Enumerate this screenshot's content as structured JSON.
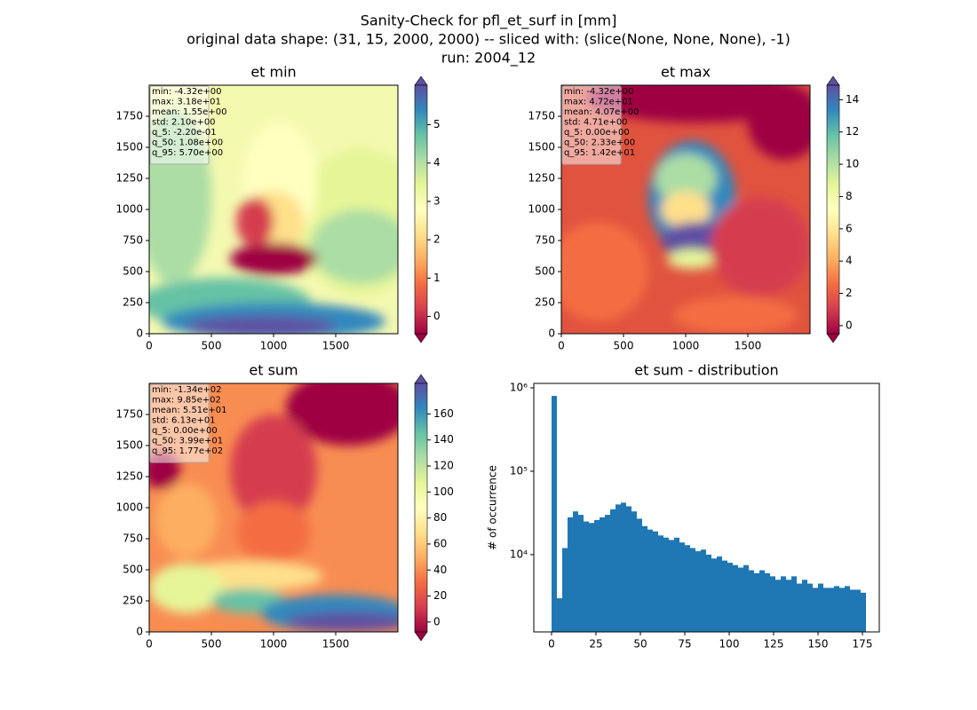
{
  "suptitle": [
    "Sanity-Check for pfl_et_surf in [mm]",
    "original data shape: (31, 15, 2000, 2000) -- sliced with: (slice(None, None, None), -1)",
    "run: 2004_12"
  ],
  "chart_data": [
    {
      "type": "heatmap",
      "title": "et min",
      "xlim": [
        0,
        2000
      ],
      "ylim": [
        0,
        2000
      ],
      "xticks": [
        0,
        500,
        1000,
        1500
      ],
      "yticks": [
        0,
        250,
        500,
        750,
        1000,
        1250,
        1500,
        1750
      ],
      "clim": [
        -0.45,
        6.03
      ],
      "cticks": [
        0,
        1,
        2,
        3,
        4,
        5
      ],
      "cmap": "Spectral",
      "stats": [
        "min: -4.32e+00",
        "max: 3.18e+01",
        "mean: 1.55e+00",
        "std: 2.10e+00",
        "q_5: -2.20e-01",
        "q_50: 1.08e+00",
        "q_95: 5.70e+00"
      ]
    },
    {
      "type": "heatmap",
      "title": "et max",
      "xlim": [
        0,
        2000
      ],
      "ylim": [
        0,
        2000
      ],
      "xticks": [
        0,
        500,
        1000,
        1500
      ],
      "yticks": [
        0,
        250,
        500,
        750,
        1000,
        1250,
        1500,
        1750
      ],
      "clim": [
        -0.5,
        14.9
      ],
      "cticks": [
        0,
        2,
        4,
        6,
        8,
        10,
        12,
        14
      ],
      "cmap": "Spectral",
      "stats": [
        "min: -4.32e+00",
        "max: 4.72e+01",
        "mean: 4.07e+00",
        "std: 4.71e+00",
        "q_5: 0.00e+00",
        "q_50: 2.33e+00",
        "q_95: 1.42e+01"
      ]
    },
    {
      "type": "heatmap",
      "title": "et sum",
      "xlim": [
        0,
        2000
      ],
      "ylim": [
        0,
        2000
      ],
      "xticks": [
        0,
        500,
        1000,
        1500
      ],
      "yticks": [
        0,
        250,
        500,
        750,
        1000,
        1250,
        1500,
        1750
      ],
      "clim": [
        -7.6,
        183.5
      ],
      "cticks": [
        0,
        20,
        40,
        60,
        80,
        100,
        120,
        140,
        160
      ],
      "cmap": "Spectral",
      "stats": [
        "min: -1.34e+02",
        "max: 9.85e+02",
        "mean: 5.51e+01",
        "std: 6.13e+01",
        "q_5: 0.00e+00",
        "q_50: 3.99e+01",
        "q_95: 1.77e+02"
      ]
    },
    {
      "type": "histogram",
      "title": "et sum - distribution",
      "ylabel": "# of occurrence",
      "color": "#1f77b4",
      "log_y": true,
      "xlim": [
        -10,
        184.5
      ],
      "ylim": [
        1186,
        1130000
      ],
      "xticks": [
        0,
        25,
        50,
        75,
        100,
        125,
        150,
        175
      ],
      "yticks": [
        {
          "value": 10000,
          "label": "10⁴"
        },
        {
          "value": 100000,
          "label": "10⁵"
        },
        {
          "value": 1000000,
          "label": "10⁶"
        }
      ],
      "bins": [
        0,
        3,
        6,
        9,
        12,
        15,
        18,
        21,
        24,
        27,
        30,
        33,
        36,
        39,
        42,
        45,
        48,
        51,
        54,
        57,
        60,
        63,
        66,
        69,
        72,
        75,
        78,
        81,
        84,
        87,
        90,
        93,
        96,
        99,
        102,
        105,
        108,
        111,
        114,
        117,
        120,
        123,
        126,
        129,
        132,
        135,
        138,
        141,
        144,
        147,
        150,
        153,
        156,
        159,
        162,
        165,
        168,
        171,
        174,
        177
      ],
      "counts": [
        800000,
        3000,
        12000,
        28000,
        33000,
        30000,
        25000,
        24000,
        26000,
        28000,
        30000,
        35000,
        40000,
        42000,
        38000,
        33000,
        27000,
        22000,
        20000,
        19000,
        17000,
        16000,
        15000,
        16000,
        14000,
        13000,
        12000,
        11000,
        11500,
        10000,
        9000,
        9500,
        8500,
        8000,
        7500,
        7000,
        7500,
        6500,
        6000,
        6500,
        6000,
        5500,
        5000,
        5500,
        5000,
        5500,
        4500,
        5000,
        4500,
        4000,
        4500,
        4000,
        4000,
        4200,
        4000,
        4200,
        3800,
        3800,
        3500
      ]
    }
  ]
}
